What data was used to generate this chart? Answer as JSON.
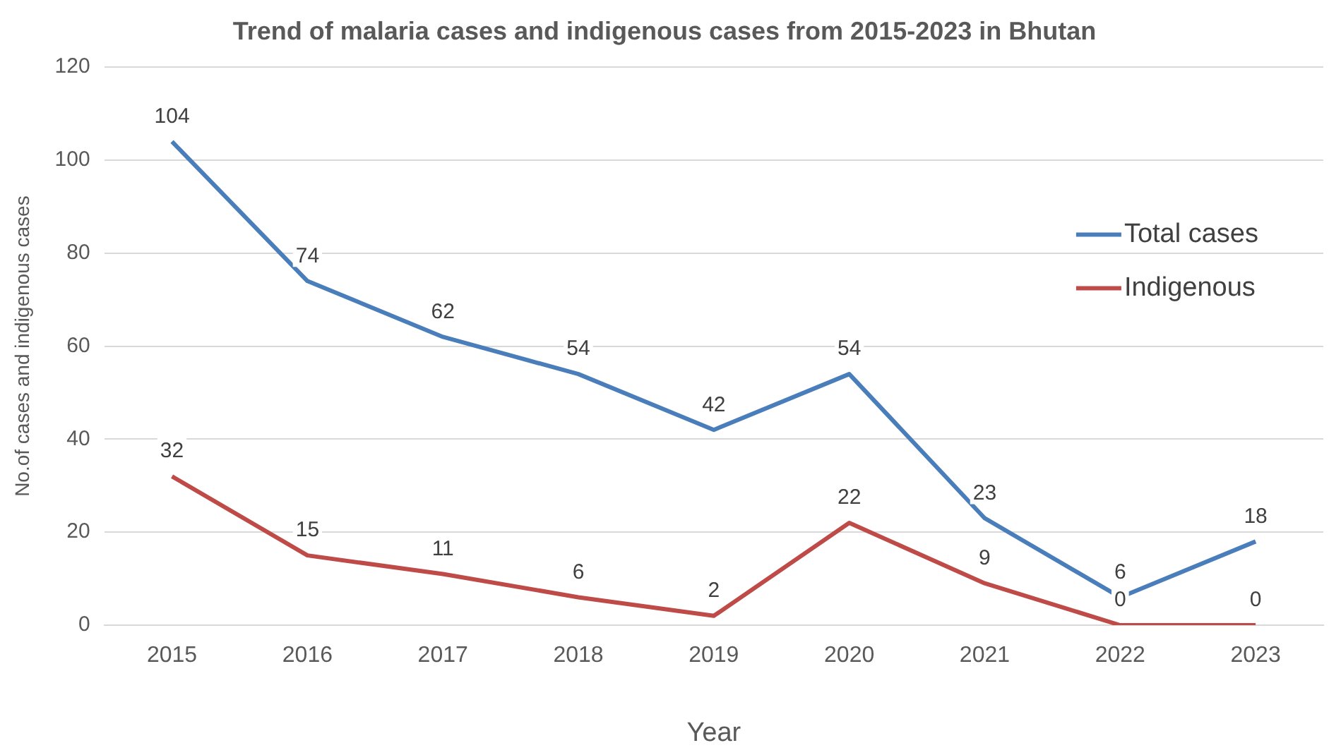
{
  "chart_data": {
    "type": "line",
    "title": "Trend of malaria cases and indigenous cases from 2015-2023 in Bhutan",
    "xlabel": "Year",
    "ylabel": "No.of cases and indigenous cases",
    "categories": [
      "2015",
      "2016",
      "2017",
      "2018",
      "2019",
      "2020",
      "2021",
      "2022",
      "2023"
    ],
    "series": [
      {
        "name": "Total cases",
        "color": "#4a7ebb",
        "values": [
          104,
          74,
          62,
          54,
          42,
          54,
          23,
          6,
          18
        ]
      },
      {
        "name": "Indigenous",
        "color": "#be4b48",
        "values": [
          32,
          15,
          11,
          6,
          2,
          22,
          9,
          0,
          0
        ]
      }
    ],
    "ylim": [
      0,
      120
    ],
    "yticks": [
      0,
      20,
      40,
      60,
      80,
      100,
      120
    ],
    "grid": "y",
    "legend": "right",
    "data_labels": true
  }
}
